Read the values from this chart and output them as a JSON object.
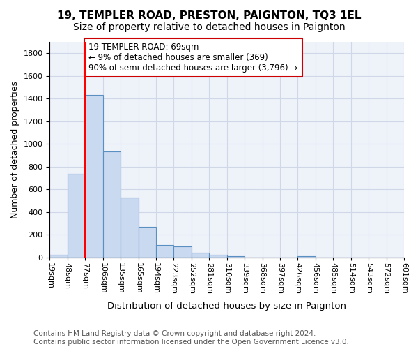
{
  "title": "19, TEMPLER ROAD, PRESTON, PAIGNTON, TQ3 1EL",
  "subtitle": "Size of property relative to detached houses in Paignton",
  "xlabel": "Distribution of detached houses by size in Paignton",
  "ylabel": "Number of detached properties",
  "bar_values": [
    25,
    740,
    1430,
    935,
    530,
    270,
    110,
    100,
    45,
    25,
    15,
    0,
    0,
    0,
    15,
    0,
    0,
    0,
    0,
    0
  ],
  "categories": [
    "19sqm",
    "48sqm",
    "77sqm",
    "106sqm",
    "135sqm",
    "165sqm",
    "194sqm",
    "223sqm",
    "252sqm",
    "281sqm",
    "310sqm",
    "339sqm",
    "368sqm",
    "397sqm",
    "426sqm",
    "456sqm",
    "485sqm",
    "514sqm",
    "543sqm",
    "572sqm",
    "601sqm"
  ],
  "bar_color": "#c9d9f0",
  "bar_edge_color": "#5a8fc2",
  "bar_edge_width": 0.8,
  "grid_color": "#d0d8e8",
  "bg_color": "#eef2f9",
  "redline_x": 2.0,
  "annotation_text": "19 TEMPLER ROAD: 69sqm\n← 9% of detached houses are smaller (369)\n90% of semi-detached houses are larger (3,796) →",
  "annotation_box_color": "#ffffff",
  "annotation_box_edge_color": "#cc0000",
  "ylim": [
    0,
    1900
  ],
  "yticks": [
    0,
    200,
    400,
    600,
    800,
    1000,
    1200,
    1400,
    1600,
    1800
  ],
  "footer_line1": "Contains HM Land Registry data © Crown copyright and database right 2024.",
  "footer_line2": "Contains public sector information licensed under the Open Government Licence v3.0.",
  "title_fontsize": 11,
  "subtitle_fontsize": 10,
  "xlabel_fontsize": 9.5,
  "ylabel_fontsize": 9,
  "tick_fontsize": 8,
  "annotation_fontsize": 8.5,
  "footer_fontsize": 7.5
}
